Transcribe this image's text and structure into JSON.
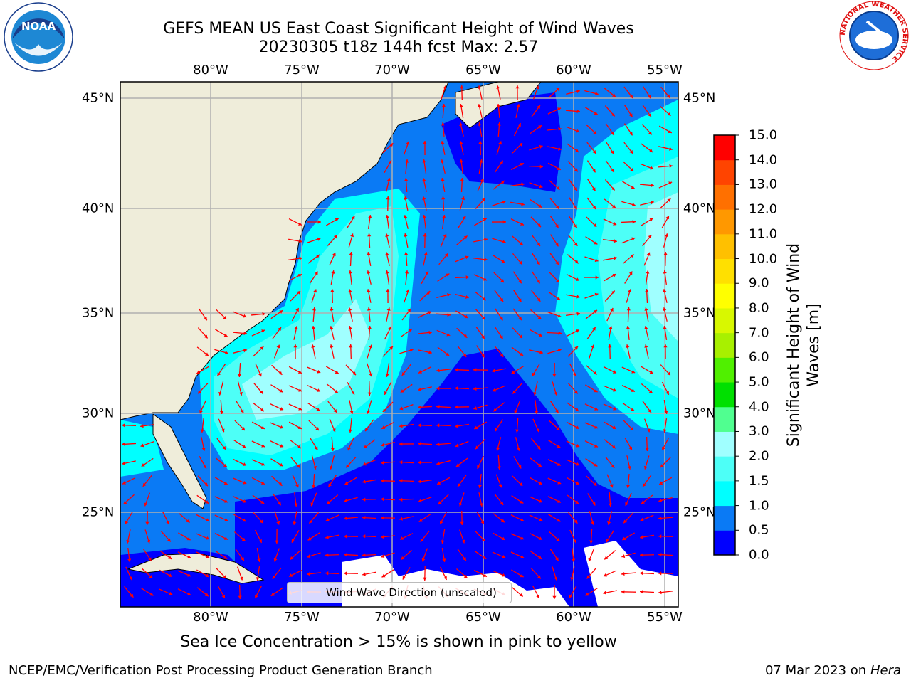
{
  "title_line1": "GEFS MEAN US East Coast Significant Height of Wind Waves",
  "title_line2": "20230305 t18z 144h fcst   Max: 2.57",
  "lon_ticks": [
    "80°W",
    "75°W",
    "70°W",
    "65°W",
    "60°W",
    "55°W"
  ],
  "lat_ticks": [
    "45°N",
    "40°N",
    "35°N",
    "30°N",
    "25°N"
  ],
  "colorbar": {
    "label_line1": "Significant Height of Wind",
    "label_line2": "Waves [m]",
    "ticks": [
      "0.0",
      "0.5",
      "1.0",
      "1.5",
      "2.0",
      "3.0",
      "4.0",
      "5.0",
      "6.0",
      "7.0",
      "8.0",
      "9.0",
      "10.0",
      "11.0",
      "12.0",
      "13.0",
      "14.0",
      "15.0"
    ],
    "colors": [
      "#0000ff",
      "#0a7af5",
      "#00ffff",
      "#4dfff7",
      "#a0ffff",
      "#50ff90",
      "#00e000",
      "#50f000",
      "#a8f000",
      "#d8f800",
      "#ffff00",
      "#ffe000",
      "#ffc000",
      "#ff9800",
      "#ff7000",
      "#ff4400",
      "#ff0000"
    ]
  },
  "legend_label": "Wind Wave Direction (unscaled)",
  "footer_note": "Sea Ice Concentration > 15% is shown in pink to yellow",
  "credit": "NCEP/EMC/Verification Post Processing Product Generation Branch",
  "date_text": "07 Mar 2023 on",
  "date_host": "Hera",
  "logos": {
    "left": "NOAA",
    "right_ring": "NATIONAL WEATHER SERVICE"
  },
  "colors": {
    "land": "#efedda",
    "grid": "#b0b0b0",
    "arrow": "#ff0000"
  }
}
